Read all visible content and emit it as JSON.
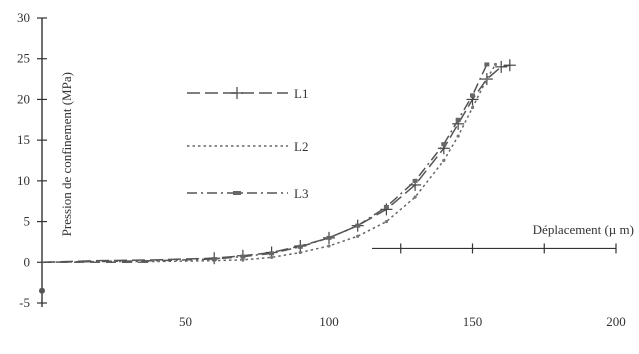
{
  "chart_data": {
    "type": "line",
    "title": "",
    "xlabel": "Déplacement (µ m)",
    "ylabel": "Pression de confinement (MPa)",
    "xlim": [
      0,
      200
    ],
    "ylim": [
      -5,
      30
    ],
    "x_ticks": [
      "50",
      "100",
      "150",
      "200"
    ],
    "y_ticks": [
      "-5",
      "0",
      "5",
      "10",
      "15",
      "20",
      "25",
      "30"
    ],
    "grid": false,
    "legend_position": "upper-left",
    "series": [
      {
        "name": "L1",
        "style": "dash-plus",
        "x": [
          0,
          20,
          40,
          60,
          70,
          80,
          90,
          100,
          110,
          120,
          130,
          140,
          145,
          150,
          155,
          160,
          163
        ],
        "y": [
          0,
          0.2,
          0.3,
          0.5,
          0.8,
          1.2,
          2,
          3,
          4.5,
          6.5,
          9.5,
          14,
          17,
          20,
          22.5,
          24,
          24.2
        ]
      },
      {
        "name": "L2",
        "style": "dotted",
        "x": [
          0,
          20,
          40,
          60,
          70,
          80,
          90,
          100,
          110,
          120,
          130,
          140,
          145,
          150,
          155,
          158
        ],
        "y": [
          0,
          0.1,
          0.1,
          0.2,
          0.3,
          0.6,
          1.2,
          2,
          3.2,
          5,
          8,
          12.5,
          15.5,
          19,
          22.5,
          24.3
        ]
      },
      {
        "name": "L3",
        "style": "dash-dot",
        "x": [
          0,
          20,
          40,
          60,
          70,
          80,
          90,
          100,
          110,
          120,
          130,
          140,
          145,
          150,
          155
        ],
        "y": [
          0,
          0.1,
          0.2,
          0.4,
          0.7,
          1.1,
          1.9,
          3,
          4.5,
          6.8,
          10,
          14.5,
          17.5,
          20.5,
          24.3
        ]
      }
    ]
  }
}
